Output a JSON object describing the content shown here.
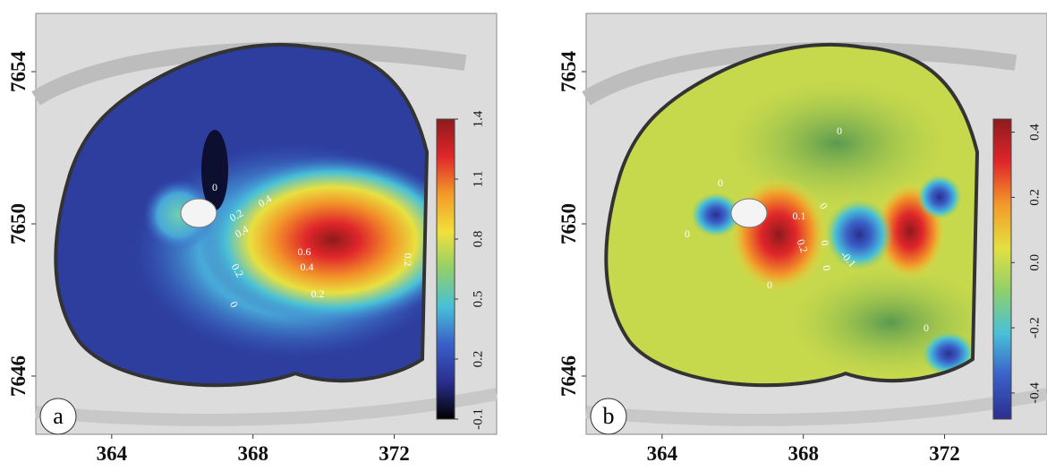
{
  "panels": [
    {
      "label": "a",
      "x_axis": {
        "lim": [
          361.85,
          374.9
        ],
        "ticks": [
          364,
          368,
          372
        ]
      },
      "y_axis": {
        "lim": [
          7644.47,
          7655.53
        ],
        "ticks": [
          7646,
          7650,
          7654
        ]
      },
      "colorbar": {
        "lim": [
          -0.1,
          1.4
        ],
        "ticks": [
          -0.1,
          0.2,
          0.5,
          0.8,
          1.1,
          1.4
        ],
        "colormap": [
          "#000000",
          "#2b2f8f",
          "#3a5fc8",
          "#48c0d8",
          "#8fd06a",
          "#f2e03a",
          "#f39a2a",
          "#e0262a",
          "#8e1a1c"
        ]
      },
      "contour_labels": [
        0,
        0.2,
        0.4,
        0.4,
        0.6,
        0.4,
        0.2,
        0.2,
        0,
        0.2
      ]
    },
    {
      "label": "b",
      "x_axis": {
        "lim": [
          361.85,
          374.9
        ],
        "ticks": [
          364,
          368,
          372
        ]
      },
      "y_axis": {
        "lim": [
          7644.47,
          7655.53
        ],
        "ticks": [
          7646,
          7650,
          7654
        ]
      },
      "colorbar": {
        "lim": [
          -0.48,
          0.44
        ],
        "ticks": [
          -0.4,
          -0.2,
          {
            "value": 0,
            "label": "0.0"
          },
          0.2,
          0.4
        ],
        "colormap": [
          "#2b2f8f",
          "#3a5fc8",
          "#48c0d8",
          "#8fd06a",
          "#e4e040",
          "#f39a2a",
          "#e0262a",
          "#8e1a1c"
        ]
      },
      "contour_labels": [
        0,
        0,
        0.1,
        0,
        0.2,
        0,
        -0.1,
        0,
        0,
        0,
        0
      ]
    }
  ]
}
